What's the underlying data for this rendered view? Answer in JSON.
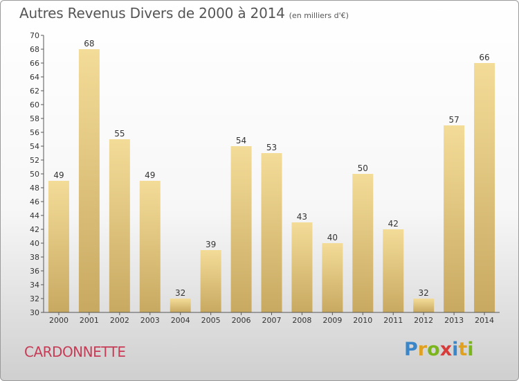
{
  "chart_data": {
    "type": "bar",
    "title": "Autres Revenus Divers de 2000 à 2014",
    "unit": "(en milliers d'€)",
    "categories": [
      "2000",
      "2001",
      "2002",
      "2003",
      "2004",
      "2005",
      "2006",
      "2007",
      "2008",
      "2009",
      "2010",
      "2011",
      "2012",
      "2013",
      "2014"
    ],
    "values": [
      49,
      68,
      55,
      49,
      32,
      39,
      54,
      53,
      43,
      40,
      50,
      42,
      32,
      57,
      66
    ],
    "xlabel": "",
    "ylabel": "",
    "ylim": [
      30,
      70
    ],
    "yticks": [
      30,
      32,
      34,
      36,
      38,
      40,
      42,
      44,
      46,
      48,
      50,
      52,
      54,
      56,
      58,
      60,
      62,
      64,
      66,
      68,
      70
    ],
    "grid": false,
    "bar_color_top": "#f3dc98",
    "bar_color_bottom": "#c8a961"
  },
  "commune": "CARDONNETTE",
  "logo": {
    "letters": [
      "P",
      "r",
      "o",
      "x",
      "i",
      "t",
      "i"
    ],
    "colors": [
      "#3a86c8",
      "#e0a020",
      "#7ab51d",
      "#d93a3a",
      "#3a86c8",
      "#e0a020",
      "#7ab51d"
    ]
  }
}
